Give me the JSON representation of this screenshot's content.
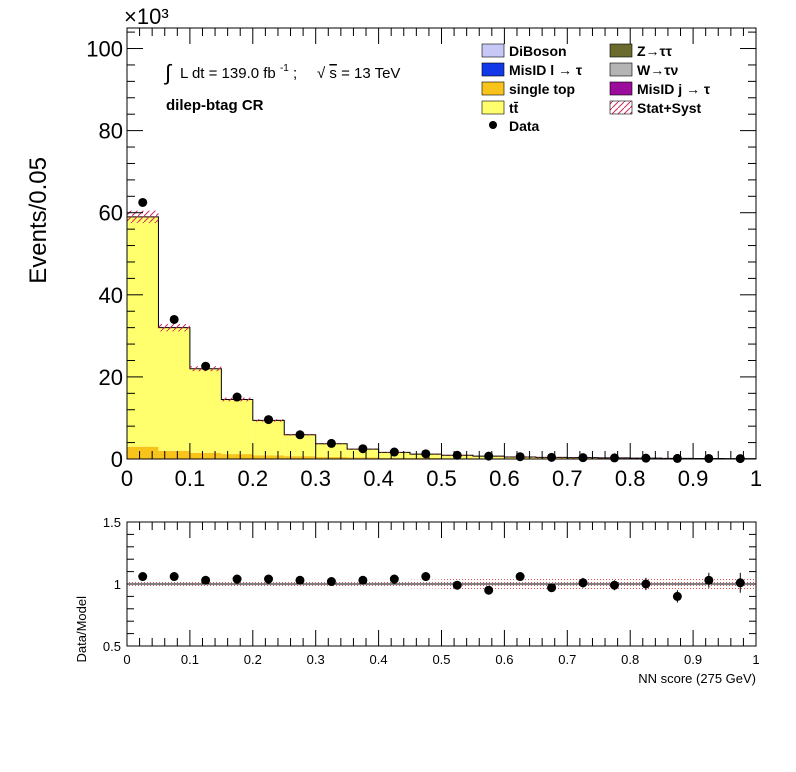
{
  "chart_data": [
    {
      "type": "bar",
      "stacked": true,
      "ylabel": "Events/0.05",
      "yscale_label": "×10³",
      "ylim": [
        0,
        105
      ],
      "xlim": [
        0,
        1
      ],
      "xticks": [
        "0",
        "0.1",
        "0.2",
        "0.3",
        "0.4",
        "0.5",
        "0.6",
        "0.7",
        "0.8",
        "0.9",
        "1"
      ],
      "yticks": [
        "0",
        "20",
        "40",
        "60",
        "80",
        "100"
      ],
      "x": [
        0.025,
        0.075,
        0.125,
        0.175,
        0.225,
        0.275,
        0.325,
        0.375,
        0.425,
        0.475,
        0.525,
        0.575,
        0.625,
        0.675,
        0.725,
        0.775,
        0.825,
        0.875,
        0.925,
        0.975
      ],
      "annotations": {
        "lumi_prefix": "∫",
        "lumi": "L dt = 139.0 fb",
        "lumi_exp": "-1",
        "lumi_sep": ";",
        "sqrt": "√",
        "energy_s": "s",
        "energy": " = 13 TeV",
        "region": "dilep-btag CR"
      },
      "legend": {
        "placement": "top-right",
        "entries": [
          {
            "key": "diboson",
            "label": "DiBoson",
            "color": "#c8c8f6"
          },
          {
            "key": "ztautau",
            "label": "Z→ττ",
            "color": "#6b6b2f"
          },
          {
            "key": "misid_l",
            "label": "MisID l → τ",
            "color": "#1239e8"
          },
          {
            "key": "wtaunu",
            "label": "W→τν",
            "color": "#b4b4b4"
          },
          {
            "key": "single_top",
            "label": "single top",
            "color": "#f8c41c"
          },
          {
            "key": "misid_j",
            "label": "MisID j → τ",
            "color": "#9c0c9c"
          },
          {
            "key": "ttbar",
            "label": "tt̄",
            "color": "#ffff6e"
          },
          {
            "key": "stat_syst",
            "label": "Stat+Syst",
            "color": "#cc2a5a"
          },
          {
            "key": "data",
            "label": "Data",
            "color": "#000000"
          }
        ]
      },
      "series": [
        {
          "name": "single top",
          "values": [
            3.0,
            2.0,
            1.5,
            1.2,
            0.9,
            0.7,
            0.5,
            0.4,
            0.3,
            0.25,
            0.2,
            0.15,
            0.1,
            0.1,
            0.08,
            0.06,
            0.05,
            0.04,
            0.03,
            0.02
          ]
        },
        {
          "name": "tt̄",
          "values": [
            56.0,
            30.0,
            20.5,
            13.3,
            8.5,
            5.2,
            3.2,
            2.0,
            1.3,
            0.95,
            0.7,
            0.55,
            0.4,
            0.3,
            0.25,
            0.2,
            0.15,
            0.12,
            0.1,
            0.08
          ]
        }
      ],
      "data_points": [
        62.5,
        34.0,
        22.6,
        15.1,
        9.6,
        5.9,
        3.8,
        2.5,
        1.7,
        1.25,
        0.9,
        0.7,
        0.55,
        0.4,
        0.33,
        0.26,
        0.2,
        0.15,
        0.13,
        0.1
      ],
      "uncertainty": [
        1.5,
        0.9,
        0.6,
        0.45,
        0.3,
        0.2,
        0.15,
        0.1,
        0.08,
        0.06,
        0.05,
        0.04,
        0.03,
        0.03,
        0.02,
        0.02,
        0.02,
        0.02,
        0.01,
        0.01
      ]
    },
    {
      "type": "scatter",
      "ylabel": "Data/Model",
      "xlabel": "NN score (275 GeV)",
      "ylim": [
        0.5,
        1.5
      ],
      "xlim": [
        0,
        1
      ],
      "xticks": [
        "0",
        "0.1",
        "0.2",
        "0.3",
        "0.4",
        "0.5",
        "0.6",
        "0.7",
        "0.8",
        "0.9",
        "1"
      ],
      "yticks": [
        "0.5",
        "1",
        "1.5"
      ],
      "x": [
        0.025,
        0.075,
        0.125,
        0.175,
        0.225,
        0.275,
        0.325,
        0.375,
        0.425,
        0.475,
        0.525,
        0.575,
        0.625,
        0.675,
        0.725,
        0.775,
        0.825,
        0.875,
        0.925,
        0.975
      ],
      "ratio": [
        1.06,
        1.06,
        1.03,
        1.04,
        1.04,
        1.03,
        1.02,
        1.03,
        1.04,
        1.06,
        0.99,
        0.95,
        1.06,
        0.97,
        1.01,
        0.99,
        1.0,
        0.9,
        1.03,
        1.01
      ],
      "ratio_err": [
        0.01,
        0.01,
        0.01,
        0.01,
        0.01,
        0.01,
        0.01,
        0.01,
        0.01,
        0.015,
        0.02,
        0.02,
        0.025,
        0.03,
        0.04,
        0.04,
        0.05,
        0.05,
        0.06,
        0.08
      ],
      "band": [
        0.03,
        0.03,
        0.03,
        0.03,
        0.03,
        0.03,
        0.03,
        0.03,
        0.03,
        0.035,
        0.04,
        0.04,
        0.04,
        0.045,
        0.05,
        0.05,
        0.05,
        0.05,
        0.05,
        0.05
      ]
    }
  ]
}
